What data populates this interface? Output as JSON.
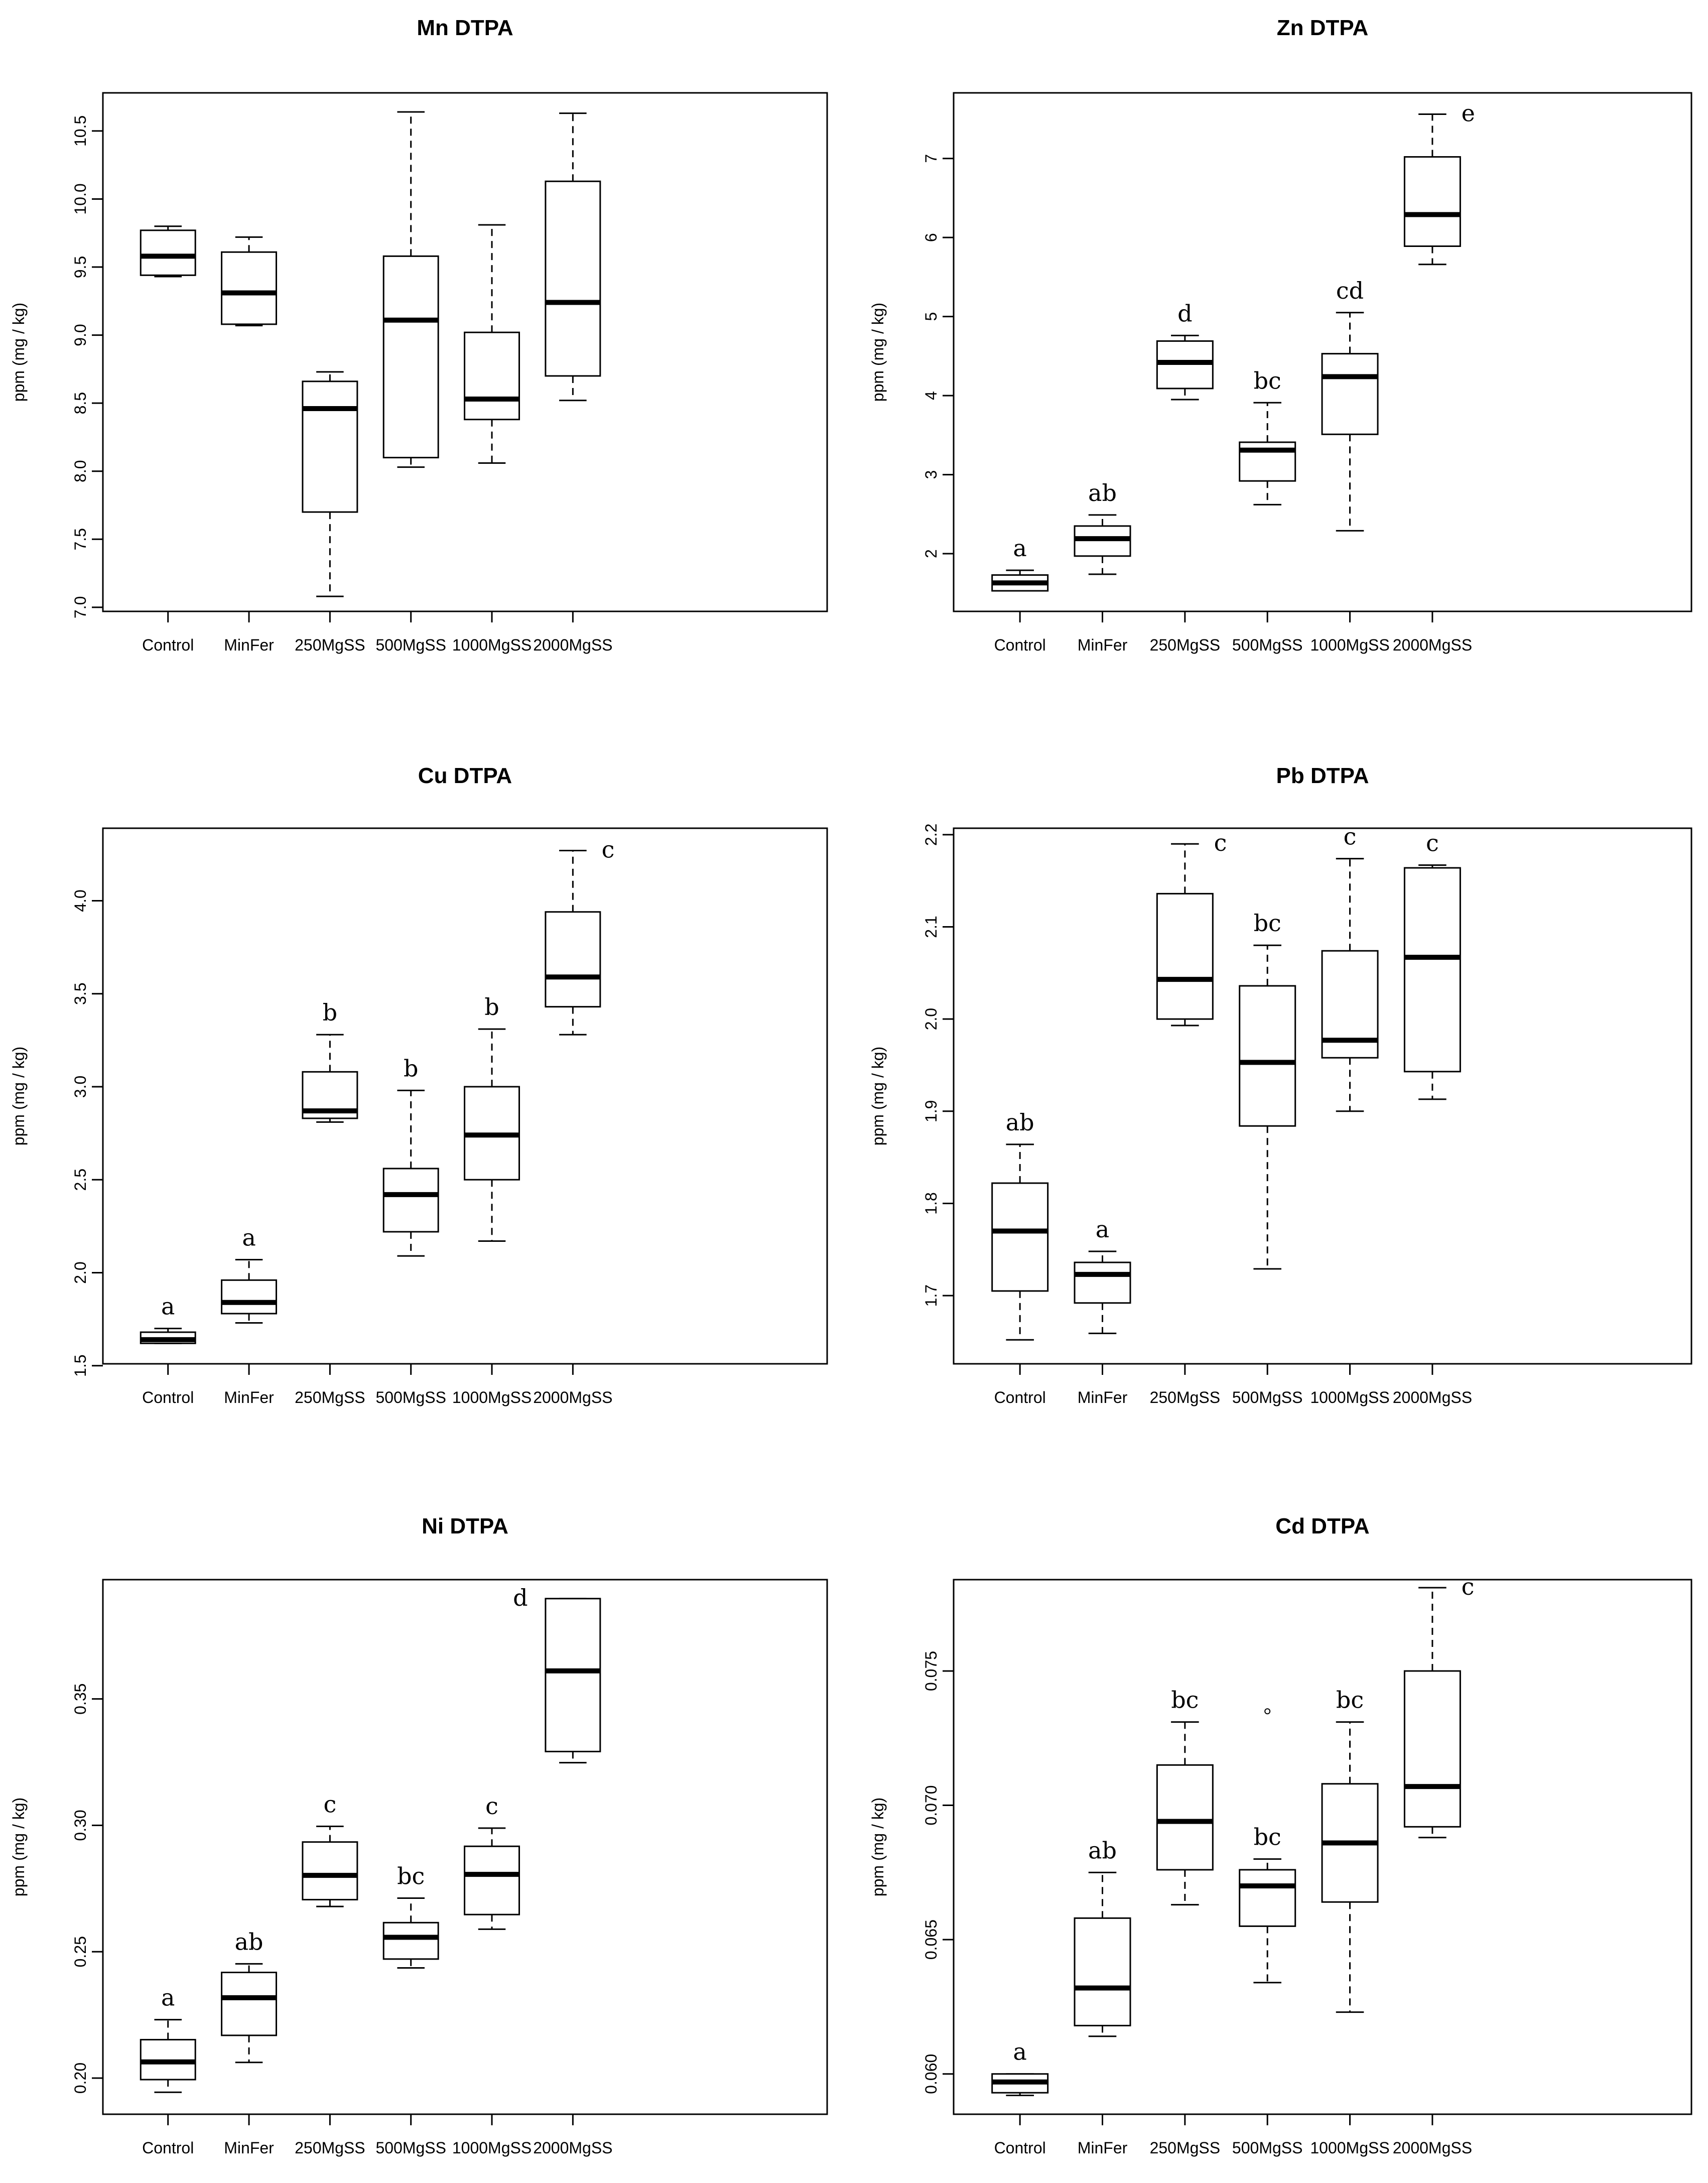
{
  "chart_data": [
    {
      "type": "box",
      "title": "Mn DTPA",
      "ylabel": "ppm (mg / kg)",
      "categories": [
        "Control",
        "MinFer",
        "250MgSS",
        "500MgSS",
        "1000MgSS",
        "2000MgSS"
      ],
      "ylim": [
        6.97,
        10.78
      ],
      "yticks": [
        "7.0",
        "7.5",
        "8.0",
        "8.5",
        "9.0",
        "9.5",
        "10.0",
        "10.5"
      ],
      "boxes": [
        {
          "min": 9.43,
          "q1": 9.44,
          "median": 9.58,
          "q3": 9.77,
          "max": 9.8
        },
        {
          "min": 9.07,
          "q1": 9.08,
          "median": 9.31,
          "q3": 9.61,
          "max": 9.72
        },
        {
          "min": 7.08,
          "q1": 7.7,
          "median": 8.46,
          "q3": 8.66,
          "max": 8.73
        },
        {
          "min": 8.03,
          "q1": 8.1,
          "median": 9.11,
          "q3": 9.58,
          "max": 10.64
        },
        {
          "min": 8.06,
          "q1": 8.38,
          "median": 8.53,
          "q3": 9.02,
          "max": 9.81
        },
        {
          "min": 8.52,
          "q1": 8.7,
          "median": 9.24,
          "q3": 10.13,
          "max": 10.63
        }
      ],
      "letters": []
    },
    {
      "type": "box",
      "title": "Zn DTPA",
      "ylabel": "ppm (mg / kg)",
      "categories": [
        "Control",
        "MinFer",
        "250MgSS",
        "500MgSS",
        "1000MgSS",
        "2000MgSS"
      ],
      "ylim": [
        1.27,
        7.83
      ],
      "yticks": [
        "2",
        "3",
        "4",
        "5",
        "6",
        "7"
      ],
      "boxes": [
        {
          "min": 1.53,
          "q1": 1.53,
          "median": 1.63,
          "q3": 1.73,
          "max": 1.79
        },
        {
          "min": 1.74,
          "q1": 1.97,
          "median": 2.19,
          "q3": 2.35,
          "max": 2.49
        },
        {
          "min": 3.95,
          "q1": 4.09,
          "median": 4.42,
          "q3": 4.69,
          "max": 4.76
        },
        {
          "min": 2.62,
          "q1": 2.92,
          "median": 3.31,
          "q3": 3.41,
          "max": 3.91
        },
        {
          "min": 2.29,
          "q1": 3.51,
          "median": 4.24,
          "q3": 4.53,
          "max": 5.05
        },
        {
          "min": 5.66,
          "q1": 5.89,
          "median": 6.29,
          "q3": 7.02,
          "max": 7.56
        }
      ],
      "letters": [
        "a",
        "ab",
        "d",
        "bc",
        "cd",
        "e"
      ]
    },
    {
      "type": "box",
      "title": "Cu DTPA",
      "ylabel": "ppm (mg / kg)",
      "categories": [
        "Control",
        "MinFer",
        "250MgSS",
        "500MgSS",
        "1000MgSS",
        "2000MgSS"
      ],
      "ylim": [
        1.51,
        4.39
      ],
      "yticks": [
        "1.5",
        "2.0",
        "2.5",
        "3.0",
        "3.5",
        "4.0"
      ],
      "boxes": [
        {
          "min": 1.62,
          "q1": 1.62,
          "median": 1.64,
          "q3": 1.68,
          "max": 1.7
        },
        {
          "min": 1.73,
          "q1": 1.78,
          "median": 1.84,
          "q3": 1.96,
          "max": 2.07
        },
        {
          "min": 2.81,
          "q1": 2.83,
          "median": 2.87,
          "q3": 3.08,
          "max": 3.28
        },
        {
          "min": 2.09,
          "q1": 2.22,
          "median": 2.42,
          "q3": 2.56,
          "max": 2.98
        },
        {
          "min": 2.17,
          "q1": 2.5,
          "median": 2.74,
          "q3": 3.0,
          "max": 3.31
        },
        {
          "min": 3.28,
          "q1": 3.43,
          "median": 3.59,
          "q3": 3.94,
          "max": 4.27
        }
      ],
      "letters": [
        "a",
        "a",
        "b",
        "b",
        "b",
        "c"
      ]
    },
    {
      "type": "box",
      "title": "Pb DTPA",
      "ylabel": "ppm (mg / kg)",
      "categories": [
        "Control",
        "MinFer",
        "250MgSS",
        "500MgSS",
        "1000MgSS",
        "2000MgSS"
      ],
      "ylim": [
        1.626,
        2.207
      ],
      "yticks": [
        "1.7",
        "1.8",
        "1.9",
        "2.0",
        "2.1",
        "2.2"
      ],
      "boxes": [
        {
          "min": 1.652,
          "q1": 1.705,
          "median": 1.77,
          "q3": 1.822,
          "max": 1.864
        },
        {
          "min": 1.659,
          "q1": 1.692,
          "median": 1.723,
          "q3": 1.736,
          "max": 1.748
        },
        {
          "min": 1.993,
          "q1": 2.0,
          "median": 2.043,
          "q3": 2.136,
          "max": 2.19
        },
        {
          "min": 1.729,
          "q1": 1.884,
          "median": 1.953,
          "q3": 2.036,
          "max": 2.08
        },
        {
          "min": 1.9,
          "q1": 1.958,
          "median": 1.977,
          "q3": 2.074,
          "max": 2.174
        },
        {
          "min": 1.913,
          "q1": 1.943,
          "median": 2.067,
          "q3": 2.164,
          "max": 2.167
        }
      ],
      "letters": [
        "ab",
        "a",
        "c",
        "bc",
        "c",
        "c"
      ]
    },
    {
      "type": "box",
      "title": "Ni DTPA",
      "ylabel": "ppm (mg / kg)",
      "categories": [
        "Control",
        "MinFer",
        "250MgSS",
        "500MgSS",
        "1000MgSS",
        "2000MgSS"
      ],
      "ylim": [
        0.1857,
        0.3972
      ],
      "yticks": [
        "0.20",
        "0.25",
        "0.30",
        "0.35"
      ],
      "boxes": [
        {
          "min": 0.1944,
          "q1": 0.1994,
          "median": 0.2064,
          "q3": 0.2152,
          "max": 0.2231
        },
        {
          "min": 0.2062,
          "q1": 0.2169,
          "median": 0.2318,
          "q3": 0.2418,
          "max": 0.2452
        },
        {
          "min": 0.2679,
          "q1": 0.2706,
          "median": 0.2802,
          "q3": 0.2934,
          "max": 0.2996
        },
        {
          "min": 0.2436,
          "q1": 0.2471,
          "median": 0.2557,
          "q3": 0.2615,
          "max": 0.2712
        },
        {
          "min": 0.2589,
          "q1": 0.2647,
          "median": 0.2806,
          "q3": 0.2917,
          "max": 0.2989
        },
        {
          "min": 0.3248,
          "q1": 0.3292,
          "median": 0.3611,
          "q3": 0.3897,
          "max": 0.3897
        }
      ],
      "letters": [
        "a",
        "ab",
        "c",
        "bc",
        "c",
        "d"
      ]
    },
    {
      "type": "box",
      "title": "Cd DTPA",
      "ylabel": "ppm (mg / kg)",
      "categories": [
        "Control",
        "MinFer",
        "250MgSS",
        "500MgSS",
        "1000MgSS",
        "2000MgSS"
      ],
      "ylim": [
        0.0585,
        0.0784
      ],
      "yticks": [
        "0.060",
        "0.065",
        "0.070",
        "0.075"
      ],
      "boxes": [
        {
          "min": 0.0592,
          "q1": 0.0593,
          "median": 0.0597,
          "q3": 0.06,
          "max": 0.06
        },
        {
          "min": 0.0614,
          "q1": 0.0618,
          "median": 0.0632,
          "q3": 0.0658,
          "max": 0.0675
        },
        {
          "min": 0.0663,
          "q1": 0.0676,
          "median": 0.0694,
          "q3": 0.0715,
          "max": 0.0731
        },
        {
          "min": 0.0634,
          "q1": 0.0655,
          "median": 0.067,
          "q3": 0.0676,
          "max": 0.068,
          "outliers": [
            0.0735
          ]
        },
        {
          "min": 0.0623,
          "q1": 0.0664,
          "median": 0.0686,
          "q3": 0.0708,
          "max": 0.0731
        },
        {
          "min": 0.0688,
          "q1": 0.0692,
          "median": 0.0707,
          "q3": 0.075,
          "max": 0.0781
        }
      ],
      "letters": [
        "a",
        "ab",
        "bc",
        "bc",
        "bc",
        "c"
      ]
    }
  ]
}
